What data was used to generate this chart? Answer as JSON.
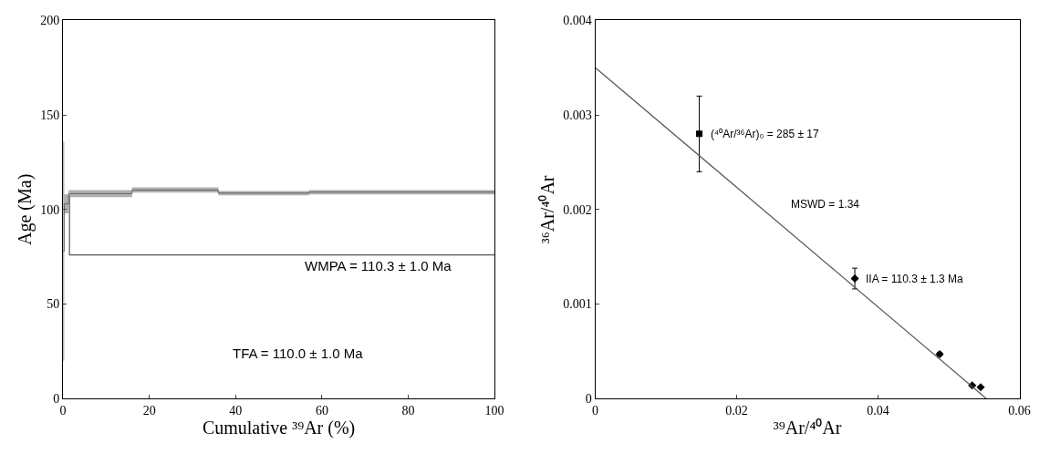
{
  "chart_data": [
    {
      "type": "step",
      "xlabel": "Cumulative ³⁹Ar (%)",
      "ylabel": "Age (Ma)",
      "xlim": [
        0,
        100
      ],
      "xticks": [
        0,
        20,
        40,
        60,
        80,
        100
      ],
      "ylim": [
        0,
        200
      ],
      "yticks": [
        0,
        50,
        100,
        150,
        200
      ],
      "annotations": [
        "WMPA = 110.3 ± 1.0 Ma",
        "TFA = 110.0 ± 1.0 Ma"
      ],
      "series": [
        {
          "type": "step",
          "x": [
            0,
            0.3,
            1.3,
            16,
            36,
            57,
            100
          ],
          "values": [
            78,
            103,
            108.4,
            110.3,
            108.7,
            109.2,
            109.2
          ],
          "lower": [
            20,
            98,
            106.5,
            108.9,
            107.5,
            108,
            108
          ],
          "upper": [
            136,
            108,
            110.3,
            111.7,
            109.8,
            110.3,
            110.3
          ],
          "color": "#333333"
        },
        {
          "type": "line",
          "x": [
            1.5,
            1.5,
            100
          ],
          "values": [
            107,
            76,
            76
          ],
          "color": "#555555"
        }
      ]
    },
    {
      "type": "scatter",
      "xlabel": "³⁹Ar/⁴⁰Ar",
      "ylabel": "³⁶Ar/⁴⁰Ar",
      "xlim": [
        0,
        0.06
      ],
      "xticks": [
        0,
        0.02,
        0.04,
        0.06
      ],
      "ylim": [
        0,
        0.004
      ],
      "yticks": [
        0,
        0.001,
        0.002,
        0.003,
        0.004
      ],
      "annotations": [
        {
          "text": "(⁴⁰Ar/³⁶Ar)₀ = 285 ± 17",
          "x": 0.0147,
          "y": 0.0028
        },
        "MSWD = 1.34",
        {
          "text": "IIA = 110.3 ± 1.3 Ma",
          "x": 0.0367,
          "y": 0.00127
        }
      ],
      "series": [
        {
          "type": "scatter",
          "marker": "square",
          "x": [
            0.0147
          ],
          "values": [
            0.0028
          ],
          "errors": [
            0.0004
          ],
          "color": "#000000"
        },
        {
          "type": "scatter",
          "marker": "diamond",
          "x": [
            0.0367,
            0.0487,
            0.0533,
            0.0545
          ],
          "values": [
            0.00127,
            0.00047,
            0.00014,
            0.00012
          ],
          "errors": [
            0.00011,
            2e-05,
            null,
            null
          ],
          "color": "#000000"
        },
        {
          "type": "line",
          "x": [
            0,
            0.0553
          ],
          "values": [
            0.0035,
            0
          ],
          "color": "#555555"
        }
      ]
    }
  ]
}
